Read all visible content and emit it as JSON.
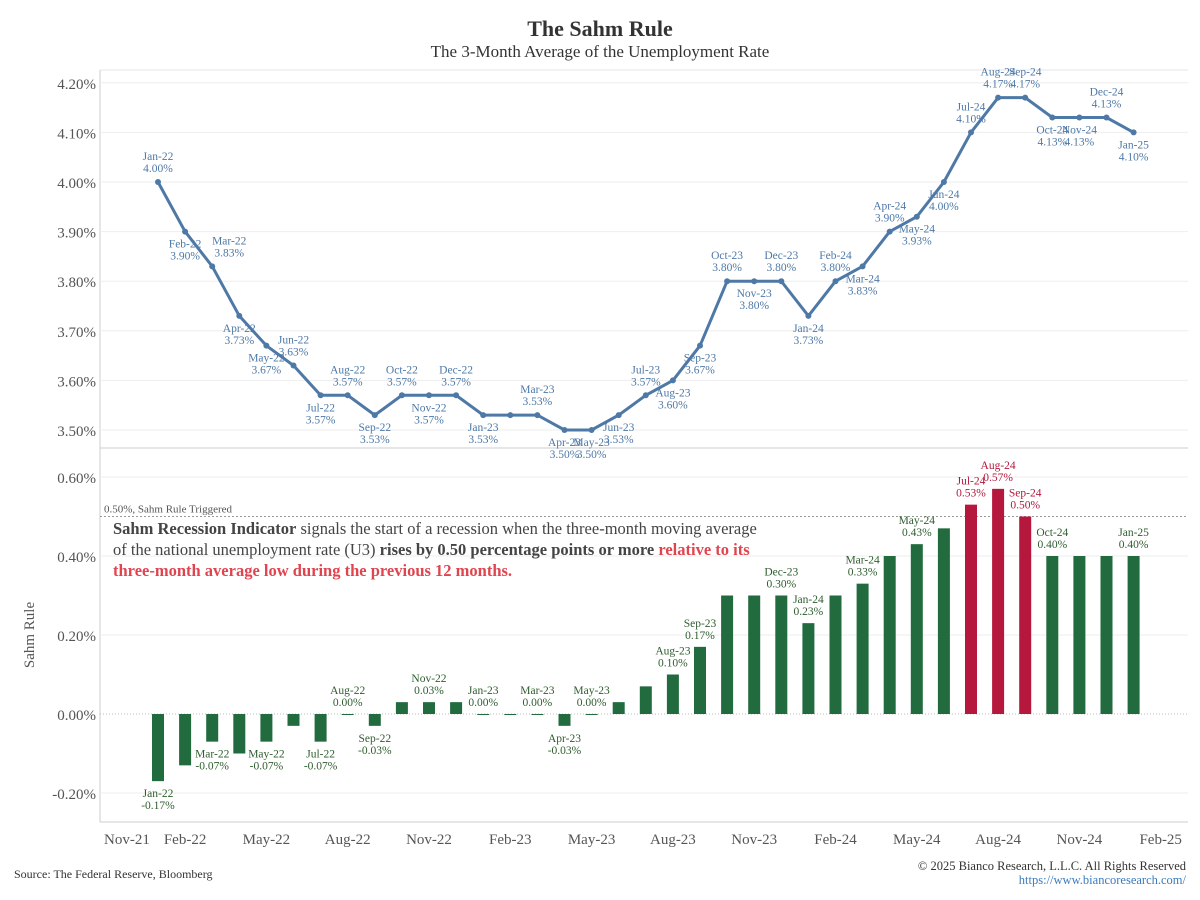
{
  "title": "The Sahm Rule",
  "subtitle": "The 3-Month Average of the Unemployment Rate",
  "source": "Source: The Federal Reserve, Bloomberg",
  "copyright": "© 2025 Bianco Research, L.L.C. All Rights Reserved",
  "url": "https://www.biancoresearch.com/",
  "annotation": {
    "bold1": "Sahm Recession Indicator",
    "text1": " signals the start of a recession when the three-month moving average of the national unemployment rate (U3) ",
    "bold2": "rises by 0.50 percentage points or more",
    "red": " relative to its three-month average low during the previous 12 months."
  },
  "threshold_label": "0.50%, Sahm Rule Triggered",
  "colors": {
    "line": "#4e79a7",
    "bar": "#226b3f",
    "bar_triggered": "#b5173d",
    "label_text": "#4e79a7",
    "bar_label_text": "#2f5d2f",
    "triggered_text": "#b5173d"
  },
  "chart_data": [
    {
      "type": "line",
      "title": "The 3-Month Average of the Unemployment Rate",
      "ylim": [
        3.5,
        4.2
      ],
      "yticks": [
        "3.50%",
        "3.60%",
        "3.70%",
        "3.80%",
        "3.90%",
        "4.00%",
        "4.10%",
        "4.20%"
      ],
      "grid": true,
      "x": [
        "Jan-22",
        "Feb-22",
        "Mar-22",
        "Apr-22",
        "May-22",
        "Jun-22",
        "Jul-22",
        "Aug-22",
        "Sep-22",
        "Oct-22",
        "Nov-22",
        "Dec-22",
        "Jan-23",
        "Feb-23",
        "Mar-23",
        "Apr-23",
        "May-23",
        "Jun-23",
        "Jul-23",
        "Aug-23",
        "Sep-23",
        "Oct-23",
        "Nov-23",
        "Dec-23",
        "Jan-24",
        "Feb-24",
        "Mar-24",
        "Apr-24",
        "May-24",
        "Jun-24",
        "Jul-24",
        "Aug-24",
        "Sep-24",
        "Oct-24",
        "Nov-24",
        "Dec-24",
        "Jan-25"
      ],
      "values": [
        4.0,
        3.9,
        3.83,
        3.73,
        3.67,
        3.63,
        3.57,
        3.57,
        3.53,
        3.57,
        3.57,
        3.57,
        3.53,
        3.53,
        3.53,
        3.5,
        3.5,
        3.53,
        3.57,
        3.6,
        3.67,
        3.8,
        3.8,
        3.8,
        3.73,
        3.8,
        3.83,
        3.9,
        3.93,
        4.0,
        4.1,
        4.17,
        4.17,
        4.13,
        4.13,
        4.13,
        4.1
      ]
    },
    {
      "type": "bar",
      "ylabel": "Sahm Rule",
      "ylim": [
        -0.2,
        0.6
      ],
      "yticks": [
        "-0.20%",
        "0.00%",
        "0.20%",
        "0.40%",
        "0.60%"
      ],
      "threshold": 0.5,
      "x": [
        "Jan-22",
        "Feb-22",
        "Mar-22",
        "Apr-22",
        "May-22",
        "Jun-22",
        "Jul-22",
        "Aug-22",
        "Sep-22",
        "Oct-22",
        "Nov-22",
        "Dec-22",
        "Jan-23",
        "Feb-23",
        "Mar-23",
        "Apr-23",
        "May-23",
        "Jun-23",
        "Jul-23",
        "Aug-23",
        "Sep-23",
        "Oct-23",
        "Nov-23",
        "Dec-23",
        "Jan-24",
        "Feb-24",
        "Mar-24",
        "Apr-24",
        "May-24",
        "Jun-24",
        "Jul-24",
        "Aug-24",
        "Sep-24",
        "Oct-24",
        "Nov-24",
        "Dec-24",
        "Jan-25"
      ],
      "values": [
        -0.17,
        -0.13,
        -0.07,
        -0.1,
        -0.07,
        -0.03,
        -0.07,
        0.0,
        -0.03,
        0.03,
        0.03,
        0.03,
        0.0,
        0.0,
        0.0,
        -0.03,
        0.0,
        0.03,
        0.07,
        0.1,
        0.17,
        0.3,
        0.3,
        0.3,
        0.23,
        0.3,
        0.33,
        0.4,
        0.43,
        0.47,
        0.53,
        0.57,
        0.5,
        0.4,
        0.4,
        0.4,
        0.4
      ]
    }
  ],
  "xaxis_ticks": [
    "Nov-21",
    "Feb-22",
    "May-22",
    "Aug-22",
    "Nov-22",
    "Feb-23",
    "May-23",
    "Aug-23",
    "Nov-23",
    "Feb-24",
    "May-24",
    "Aug-24",
    "Nov-24",
    "Feb-25"
  ]
}
